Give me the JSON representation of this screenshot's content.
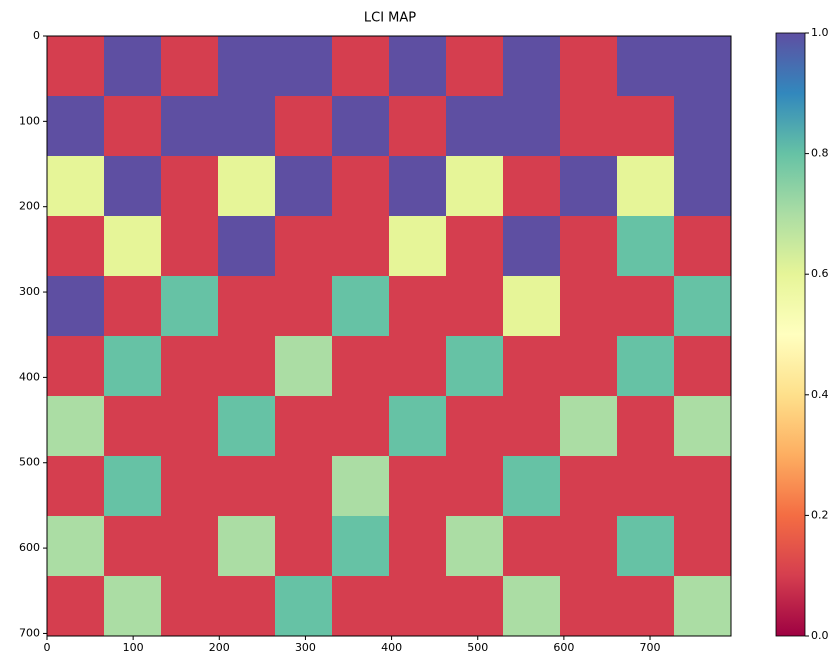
{
  "chart_data": {
    "type": "heatmap",
    "title": "LCI MAP",
    "xlim": [
      0,
      794
    ],
    "xticks": [
      0,
      100,
      200,
      300,
      400,
      500,
      600,
      700
    ],
    "ylim": [
      0,
      703
    ],
    "yticks": [
      0,
      100,
      200,
      300,
      400,
      500,
      600,
      700
    ],
    "y_inverted": true,
    "clim": [
      0,
      1
    ],
    "cticks": [
      {
        "value": 0,
        "label": "0.0"
      },
      0.2,
      0.4,
      0.6,
      0.8,
      {
        "value": 1,
        "label": "1.0"
      }
    ],
    "colormap": [
      "#9e0142",
      "#d53e4f",
      "#f46d43",
      "#fdae61",
      "#fee08b",
      "#ffffbf",
      "#e6f598",
      "#abdda4",
      "#66c2a5",
      "#3288bd",
      "#5e4fa2"
    ],
    "values": [
      [
        0.1,
        1,
        0.1,
        1,
        1,
        0.1,
        1,
        0.1,
        1,
        0.1,
        1,
        1
      ],
      [
        1,
        0.1,
        1,
        1,
        0.1,
        1,
        0.1,
        1,
        1,
        0.1,
        0.1,
        1
      ],
      [
        0.6,
        1,
        0.1,
        0.6,
        1,
        0.1,
        1,
        0.6,
        0.1,
        1,
        0.6,
        1
      ],
      [
        0.1,
        0.6,
        0.1,
        1,
        0.1,
        0.1,
        0.6,
        0.1,
        1,
        0.1,
        0.8,
        0.1
      ],
      [
        1,
        0.1,
        0.8,
        0.1,
        0.1,
        0.8,
        0.1,
        0.1,
        0.6,
        0.1,
        0.1,
        0.8
      ],
      [
        0.1,
        0.8,
        0.1,
        0.1,
        0.7,
        0.1,
        0.1,
        0.8,
        0.1,
        0.1,
        0.8,
        0.1
      ],
      [
        0.7,
        0.1,
        0.1,
        0.8,
        0.1,
        0.1,
        0.8,
        0.1,
        0.1,
        0.7,
        0.1,
        0.7
      ],
      [
        0.1,
        0.8,
        0.1,
        0.1,
        0.1,
        0.7,
        0.1,
        0.1,
        0.8,
        0.1,
        0.1,
        0.1
      ],
      [
        0.7,
        0.1,
        0.1,
        0.7,
        0.1,
        0.8,
        0.1,
        0.7,
        0.1,
        0.1,
        0.8,
        0.1
      ],
      [
        0.1,
        0.7,
        0.1,
        0.1,
        0.8,
        0.1,
        0.1,
        0.1,
        0.7,
        0.1,
        0.1,
        0.7
      ]
    ]
  }
}
